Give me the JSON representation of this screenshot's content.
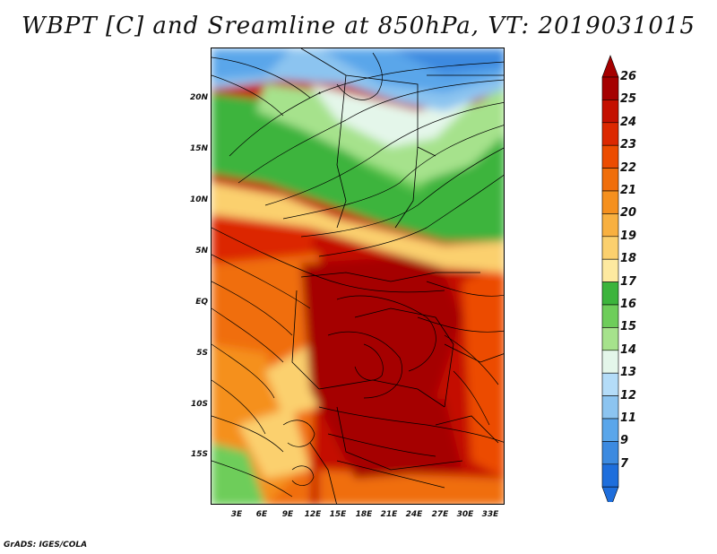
{
  "title": "WBPT [C] and Sreamline at 850hPa, VT: 2019031015",
  "footer": "GrADS: IGES/COLA",
  "y_axis": [
    "20N",
    "15N",
    "10N",
    "5N",
    "EQ",
    "5S",
    "10S",
    "15S"
  ],
  "x_axis": [
    "3E",
    "6E",
    "9E",
    "12E",
    "15E",
    "18E",
    "21E",
    "24E",
    "27E",
    "30E",
    "33E"
  ],
  "colorbar": {
    "labels": [
      "26",
      "25",
      "24",
      "23",
      "22",
      "21",
      "20",
      "19",
      "18",
      "17",
      "16",
      "15",
      "14",
      "13",
      "12",
      "11",
      "9",
      "7"
    ],
    "colors": [
      "#a50000",
      "#c41000",
      "#dc2800",
      "#ec4c00",
      "#f06e0a",
      "#f5901e",
      "#f8b040",
      "#fbd06e",
      "#fde9a0",
      "#3cb43c",
      "#6ecd5a",
      "#a6e28c",
      "#e4f6ea",
      "#b4dcf8",
      "#8cc4f0",
      "#5aa6ea",
      "#3c8ae0",
      "#1e6edc"
    ]
  },
  "colors": {
    "frame": "#000000",
    "boundary": "#000000",
    "streamline": "#000000"
  }
}
